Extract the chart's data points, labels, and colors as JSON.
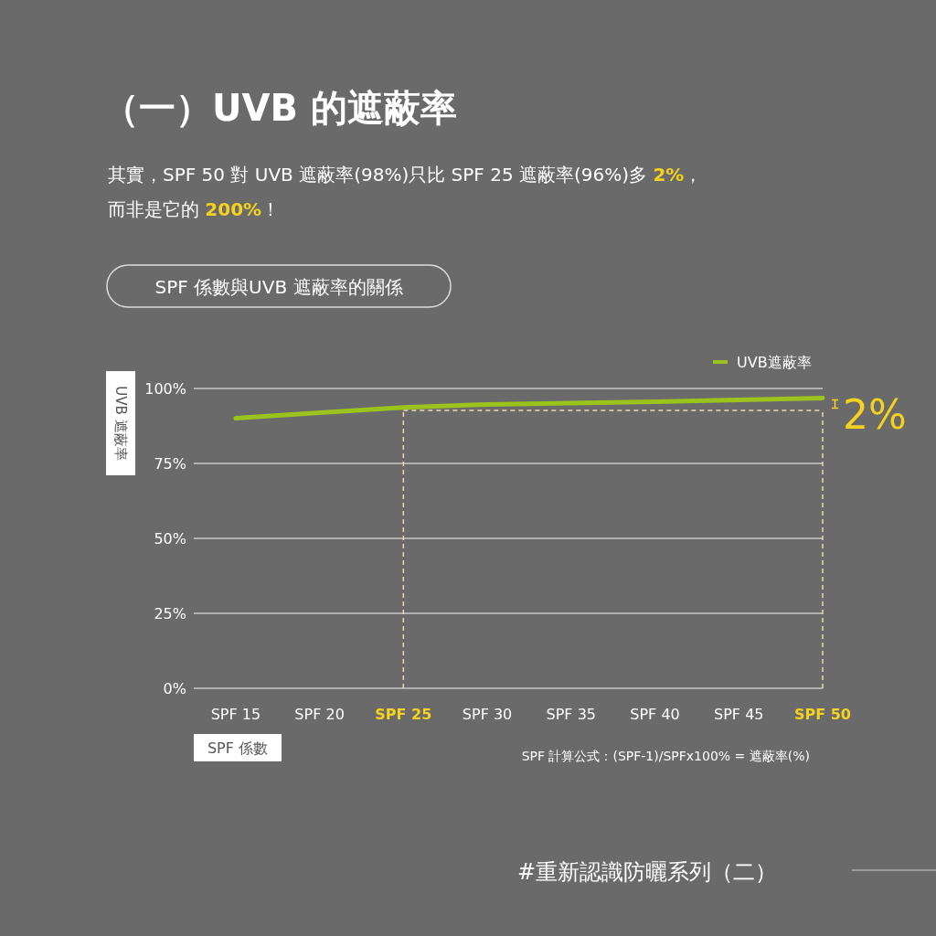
{
  "chart_data": {
    "type": "line",
    "title": "（一）UVB 的遮蔽率",
    "subtitle": "其實，SPF 50 對 UVB 遮蔽率(98%)只比 SPF 25 遮蔽率(96%)多 **2%**，而非是它的 **200%**！",
    "xlabel": "SPF 係數",
    "ylabel": "UVB 遮蔽率",
    "categories": [
      "SPF 15",
      "SPF 20",
      "SPF 25",
      "SPF 30",
      "SPF 35",
      "SPF 40",
      "SPF 45",
      "SPF 50"
    ],
    "series": [
      {
        "name": "UVB遮蔽率",
        "color": "#9bc31c",
        "values": [
          90.1,
          91.9,
          93.7,
          94.7,
          95.1,
          95.6,
          96.2,
          96.8
        ]
      }
    ],
    "ylim": [
      0,
      100
    ],
    "yticks": [
      {
        "value": 0,
        "label": "0%"
      },
      {
        "value": 25,
        "label": "25%"
      },
      {
        "value": 50,
        "label": "50%"
      },
      {
        "value": 75,
        "label": "75%"
      },
      {
        "value": 100,
        "label": "100%"
      }
    ],
    "grid": "y",
    "legend": "top right",
    "marker": "none",
    "line_style": "solid",
    "ref_lines": [
      {
        "axis": "x",
        "value": "SPF 25",
        "color": "#e8dcae",
        "line_style": "dashed"
      },
      {
        "axis": "x",
        "value": "SPF 50",
        "color": "#e8dcae",
        "line_style": "dashed"
      },
      {
        "axis": "y",
        "value": 92.7,
        "color": "#e8dcae",
        "line_style": "dashed"
      }
    ],
    "annotations": [
      {
        "text": "2%",
        "x": "SPF 50",
        "y": 96.8
      },
      "SPF 係數與UVB 遮蔽率的關係",
      "SPF 計算公式：(SPF-1)/SPFx100% = 遮蔽率(%)",
      "#重新認識防曬系列（二）"
    ]
  }
}
